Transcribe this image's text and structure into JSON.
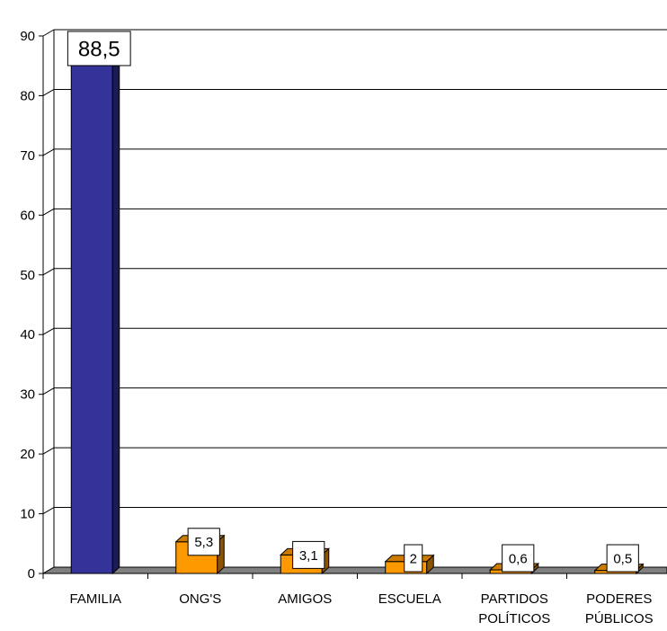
{
  "chart_data": {
    "type": "bar",
    "title": "",
    "xlabel": "",
    "ylabel": "",
    "ylim": [
      0,
      90
    ],
    "yticks": [
      0,
      10,
      20,
      30,
      40,
      50,
      60,
      70,
      80,
      90
    ],
    "grid": true,
    "legend": "none",
    "categories": [
      [
        "FAMILIA"
      ],
      [
        "ONG'S"
      ],
      [
        "AMIGOS"
      ],
      [
        "ESCUELA"
      ],
      [
        "PARTIDOS",
        "POLÍTICOS"
      ],
      [
        "PODERES",
        "PÚBLICOS"
      ]
    ],
    "values": [
      88.5,
      5.3,
      3.1,
      2,
      0.6,
      0.5
    ],
    "value_labels": [
      "88,5",
      "5,3",
      "3,1",
      "2",
      "0,6",
      "0,5"
    ],
    "colors": {
      "highlight_bar": "#333399",
      "other_bars": "#FF9900",
      "highlight_label": "#0000FF",
      "other_label": "#000000"
    }
  }
}
